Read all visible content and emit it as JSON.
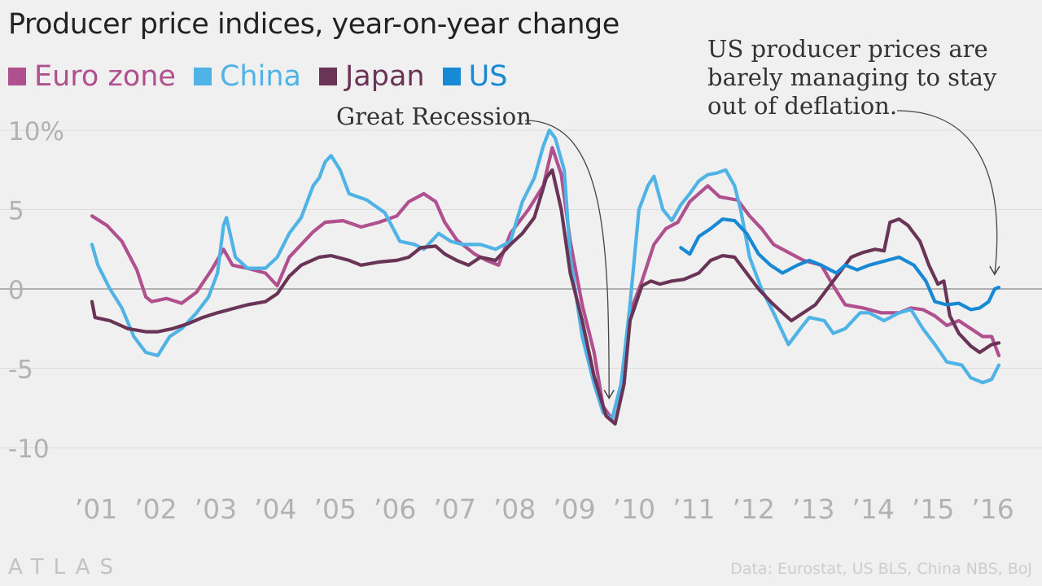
{
  "title": "Producer price indices, year-on-year change",
  "logo": "ATLAS",
  "source": "Data: Eurostat, US BLS, China NBS, BoJ",
  "colors": {
    "euro": "#b0508f",
    "china": "#4fb3e6",
    "japan": "#6a3456",
    "us": "#1889d4",
    "zero_line": "#9a9a9a",
    "grid": "#dcdcdc",
    "tick_text": "#b2b2b2"
  },
  "chart_data": {
    "type": "line",
    "title": "Producer price indices, year-on-year change",
    "xlabel": "",
    "ylabel": "",
    "ylim": [
      -10,
      10
    ],
    "y_ticks": [
      {
        "value": 10,
        "label": "10%"
      },
      {
        "value": 5,
        "label": "5"
      },
      {
        "value": 0,
        "label": "0"
      },
      {
        "value": -5,
        "label": "-5"
      },
      {
        "value": -10,
        "label": "-10"
      }
    ],
    "x_ticks": [
      {
        "value": 2001,
        "label": "’01"
      },
      {
        "value": 2002,
        "label": "’02"
      },
      {
        "value": 2003,
        "label": "’03"
      },
      {
        "value": 2004,
        "label": "’04"
      },
      {
        "value": 2005,
        "label": "’05"
      },
      {
        "value": 2006,
        "label": "’06"
      },
      {
        "value": 2007,
        "label": "’07"
      },
      {
        "value": 2008,
        "label": "’08"
      },
      {
        "value": 2009,
        "label": "’09"
      },
      {
        "value": 2010,
        "label": "’10"
      },
      {
        "value": 2011,
        "label": "’11"
      },
      {
        "value": 2012,
        "label": "’12"
      },
      {
        "value": 2013,
        "label": "’13"
      },
      {
        "value": 2014,
        "label": "’14"
      },
      {
        "value": 2015,
        "label": "’15"
      },
      {
        "value": 2016,
        "label": "’16"
      }
    ],
    "xlim": [
      2001,
      2016.17
    ],
    "grid": true,
    "legend_position": "top-left",
    "series": [
      {
        "name": "Euro zone",
        "color_key": "euro",
        "points": [
          [
            2001.0,
            4.6
          ],
          [
            2001.25,
            4.0
          ],
          [
            2001.5,
            3.0
          ],
          [
            2001.75,
            1.2
          ],
          [
            2001.9,
            -0.5
          ],
          [
            2002.0,
            -0.8
          ],
          [
            2002.25,
            -0.6
          ],
          [
            2002.5,
            -0.9
          ],
          [
            2002.75,
            -0.2
          ],
          [
            2003.0,
            1.2
          ],
          [
            2003.2,
            2.5
          ],
          [
            2003.35,
            1.5
          ],
          [
            2003.6,
            1.3
          ],
          [
            2003.9,
            1.0
          ],
          [
            2004.1,
            0.2
          ],
          [
            2004.3,
            2.0
          ],
          [
            2004.5,
            2.8
          ],
          [
            2004.7,
            3.6
          ],
          [
            2004.9,
            4.2
          ],
          [
            2005.2,
            4.3
          ],
          [
            2005.5,
            3.9
          ],
          [
            2005.8,
            4.2
          ],
          [
            2006.1,
            4.6
          ],
          [
            2006.3,
            5.5
          ],
          [
            2006.55,
            6.0
          ],
          [
            2006.75,
            5.5
          ],
          [
            2006.9,
            4.2
          ],
          [
            2007.1,
            3.1
          ],
          [
            2007.4,
            2.2
          ],
          [
            2007.6,
            1.8
          ],
          [
            2007.8,
            1.5
          ],
          [
            2008.0,
            3.5
          ],
          [
            2008.3,
            5.0
          ],
          [
            2008.55,
            6.5
          ],
          [
            2008.7,
            8.9
          ],
          [
            2008.85,
            7.2
          ],
          [
            2009.0,
            3.0
          ],
          [
            2009.2,
            -1.0
          ],
          [
            2009.4,
            -4.0
          ],
          [
            2009.55,
            -7.4
          ],
          [
            2009.7,
            -8.2
          ],
          [
            2009.85,
            -6.0
          ],
          [
            2010.0,
            -1.5
          ],
          [
            2010.2,
            0.5
          ],
          [
            2010.4,
            2.8
          ],
          [
            2010.6,
            3.8
          ],
          [
            2010.8,
            4.2
          ],
          [
            2011.0,
            5.5
          ],
          [
            2011.3,
            6.5
          ],
          [
            2011.5,
            5.8
          ],
          [
            2011.8,
            5.6
          ],
          [
            2012.0,
            4.6
          ],
          [
            2012.2,
            3.8
          ],
          [
            2012.4,
            2.8
          ],
          [
            2012.7,
            2.2
          ],
          [
            2012.9,
            1.8
          ],
          [
            2013.2,
            1.5
          ],
          [
            2013.4,
            0.2
          ],
          [
            2013.6,
            -1.0
          ],
          [
            2013.9,
            -1.2
          ],
          [
            2014.2,
            -1.5
          ],
          [
            2014.5,
            -1.5
          ],
          [
            2014.7,
            -1.2
          ],
          [
            2014.9,
            -1.3
          ],
          [
            2015.1,
            -1.7
          ],
          [
            2015.3,
            -2.3
          ],
          [
            2015.5,
            -2.0
          ],
          [
            2015.7,
            -2.5
          ],
          [
            2015.9,
            -3.0
          ],
          [
            2016.05,
            -3.0
          ],
          [
            2016.17,
            -4.2
          ]
        ]
      },
      {
        "name": "China",
        "color_key": "china",
        "points": [
          [
            2001.0,
            2.8
          ],
          [
            2001.1,
            1.5
          ],
          [
            2001.3,
            0.0
          ],
          [
            2001.5,
            -1.2
          ],
          [
            2001.7,
            -3.0
          ],
          [
            2001.9,
            -4.0
          ],
          [
            2002.1,
            -4.2
          ],
          [
            2002.3,
            -3.0
          ],
          [
            2002.5,
            -2.5
          ],
          [
            2002.75,
            -1.5
          ],
          [
            2002.95,
            -0.5
          ],
          [
            2003.1,
            1.0
          ],
          [
            2003.2,
            4.0
          ],
          [
            2003.25,
            4.5
          ],
          [
            2003.4,
            2.0
          ],
          [
            2003.6,
            1.3
          ],
          [
            2003.9,
            1.3
          ],
          [
            2004.1,
            2.0
          ],
          [
            2004.3,
            3.5
          ],
          [
            2004.5,
            4.5
          ],
          [
            2004.7,
            6.5
          ],
          [
            2004.8,
            7.0
          ],
          [
            2004.9,
            8.0
          ],
          [
            2005.0,
            8.4
          ],
          [
            2005.15,
            7.5
          ],
          [
            2005.3,
            6.0
          ],
          [
            2005.6,
            5.6
          ],
          [
            2005.9,
            4.8
          ],
          [
            2006.15,
            3.0
          ],
          [
            2006.4,
            2.8
          ],
          [
            2006.55,
            2.5
          ],
          [
            2006.8,
            3.5
          ],
          [
            2007.0,
            3.0
          ],
          [
            2007.2,
            2.8
          ],
          [
            2007.5,
            2.8
          ],
          [
            2007.75,
            2.5
          ],
          [
            2008.0,
            3.0
          ],
          [
            2008.2,
            5.5
          ],
          [
            2008.4,
            7.0
          ],
          [
            2008.55,
            9.0
          ],
          [
            2008.65,
            10.0
          ],
          [
            2008.75,
            9.5
          ],
          [
            2008.9,
            7.5
          ],
          [
            2009.0,
            2.0
          ],
          [
            2009.2,
            -3.0
          ],
          [
            2009.4,
            -6.0
          ],
          [
            2009.55,
            -7.8
          ],
          [
            2009.7,
            -8.2
          ],
          [
            2009.85,
            -6.0
          ],
          [
            2010.0,
            -1.0
          ],
          [
            2010.15,
            5.0
          ],
          [
            2010.3,
            6.5
          ],
          [
            2010.4,
            7.1
          ],
          [
            2010.55,
            5.0
          ],
          [
            2010.7,
            4.3
          ],
          [
            2010.85,
            5.3
          ],
          [
            2011.0,
            6.0
          ],
          [
            2011.15,
            6.8
          ],
          [
            2011.3,
            7.2
          ],
          [
            2011.45,
            7.3
          ],
          [
            2011.6,
            7.5
          ],
          [
            2011.75,
            6.5
          ],
          [
            2011.85,
            5.0
          ],
          [
            2012.0,
            2.0
          ],
          [
            2012.2,
            0.0
          ],
          [
            2012.4,
            -1.5
          ],
          [
            2012.65,
            -3.5
          ],
          [
            2012.85,
            -2.5
          ],
          [
            2013.0,
            -1.8
          ],
          [
            2013.25,
            -2.0
          ],
          [
            2013.4,
            -2.8
          ],
          [
            2013.6,
            -2.5
          ],
          [
            2013.85,
            -1.5
          ],
          [
            2014.0,
            -1.5
          ],
          [
            2014.25,
            -2.0
          ],
          [
            2014.5,
            -1.5
          ],
          [
            2014.7,
            -1.3
          ],
          [
            2014.9,
            -2.5
          ],
          [
            2015.1,
            -3.5
          ],
          [
            2015.3,
            -4.6
          ],
          [
            2015.55,
            -4.8
          ],
          [
            2015.7,
            -5.6
          ],
          [
            2015.9,
            -5.9
          ],
          [
            2016.05,
            -5.7
          ],
          [
            2016.17,
            -4.8
          ]
        ]
      },
      {
        "name": "Japan",
        "color_key": "japan",
        "points": [
          [
            2001.0,
            -0.8
          ],
          [
            2001.05,
            -1.8
          ],
          [
            2001.3,
            -2.0
          ],
          [
            2001.6,
            -2.5
          ],
          [
            2001.9,
            -2.7
          ],
          [
            2002.1,
            -2.7
          ],
          [
            2002.35,
            -2.5
          ],
          [
            2002.6,
            -2.2
          ],
          [
            2002.85,
            -1.8
          ],
          [
            2003.1,
            -1.5
          ],
          [
            2003.4,
            -1.2
          ],
          [
            2003.6,
            -1.0
          ],
          [
            2003.9,
            -0.8
          ],
          [
            2004.1,
            -0.3
          ],
          [
            2004.3,
            0.8
          ],
          [
            2004.5,
            1.5
          ],
          [
            2004.8,
            2.0
          ],
          [
            2005.0,
            2.1
          ],
          [
            2005.3,
            1.8
          ],
          [
            2005.5,
            1.5
          ],
          [
            2005.8,
            1.7
          ],
          [
            2006.1,
            1.8
          ],
          [
            2006.3,
            2.0
          ],
          [
            2006.5,
            2.6
          ],
          [
            2006.75,
            2.7
          ],
          [
            2006.9,
            2.2
          ],
          [
            2007.1,
            1.8
          ],
          [
            2007.3,
            1.5
          ],
          [
            2007.5,
            2.0
          ],
          [
            2007.75,
            1.8
          ],
          [
            2008.0,
            2.8
          ],
          [
            2008.2,
            3.5
          ],
          [
            2008.4,
            4.5
          ],
          [
            2008.6,
            7.0
          ],
          [
            2008.7,
            7.5
          ],
          [
            2008.85,
            5.0
          ],
          [
            2009.0,
            1.0
          ],
          [
            2009.2,
            -2.0
          ],
          [
            2009.4,
            -5.5
          ],
          [
            2009.6,
            -8.0
          ],
          [
            2009.75,
            -8.5
          ],
          [
            2009.9,
            -6.0
          ],
          [
            2010.0,
            -2.0
          ],
          [
            2010.2,
            0.2
          ],
          [
            2010.35,
            0.5
          ],
          [
            2010.5,
            0.3
          ],
          [
            2010.7,
            0.5
          ],
          [
            2010.9,
            0.6
          ],
          [
            2011.15,
            1.0
          ],
          [
            2011.35,
            1.8
          ],
          [
            2011.55,
            2.1
          ],
          [
            2011.75,
            2.0
          ],
          [
            2011.95,
            1.0
          ],
          [
            2012.15,
            0.0
          ],
          [
            2012.35,
            -0.8
          ],
          [
            2012.55,
            -1.5
          ],
          [
            2012.7,
            -2.0
          ],
          [
            2012.9,
            -1.5
          ],
          [
            2013.1,
            -1.0
          ],
          [
            2013.3,
            0.0
          ],
          [
            2013.5,
            1.0
          ],
          [
            2013.7,
            2.0
          ],
          [
            2013.9,
            2.3
          ],
          [
            2014.1,
            2.5
          ],
          [
            2014.25,
            2.4
          ],
          [
            2014.35,
            4.2
          ],
          [
            2014.5,
            4.4
          ],
          [
            2014.65,
            4.0
          ],
          [
            2014.85,
            3.0
          ],
          [
            2015.0,
            1.5
          ],
          [
            2015.15,
            0.3
          ],
          [
            2015.25,
            0.5
          ],
          [
            2015.35,
            -1.7
          ],
          [
            2015.5,
            -2.8
          ],
          [
            2015.7,
            -3.6
          ],
          [
            2015.85,
            -4.0
          ],
          [
            2016.05,
            -3.5
          ],
          [
            2016.17,
            -3.4
          ]
        ]
      },
      {
        "name": "US",
        "color_key": "us",
        "points": [
          [
            2010.85,
            2.6
          ],
          [
            2011.0,
            2.2
          ],
          [
            2011.15,
            3.3
          ],
          [
            2011.35,
            3.8
          ],
          [
            2011.55,
            4.4
          ],
          [
            2011.75,
            4.3
          ],
          [
            2011.95,
            3.5
          ],
          [
            2012.15,
            2.2
          ],
          [
            2012.35,
            1.5
          ],
          [
            2012.55,
            1.0
          ],
          [
            2012.8,
            1.5
          ],
          [
            2013.0,
            1.8
          ],
          [
            2013.2,
            1.5
          ],
          [
            2013.45,
            1.0
          ],
          [
            2013.6,
            1.5
          ],
          [
            2013.8,
            1.2
          ],
          [
            2014.0,
            1.5
          ],
          [
            2014.3,
            1.8
          ],
          [
            2014.5,
            2.0
          ],
          [
            2014.75,
            1.5
          ],
          [
            2014.95,
            0.5
          ],
          [
            2015.1,
            -0.8
          ],
          [
            2015.3,
            -1.0
          ],
          [
            2015.5,
            -0.9
          ],
          [
            2015.7,
            -1.3
          ],
          [
            2015.85,
            -1.2
          ],
          [
            2016.0,
            -0.8
          ],
          [
            2016.1,
            0.0
          ],
          [
            2016.17,
            0.1
          ]
        ]
      }
    ],
    "annotations": [
      {
        "lines": [
          "Great Recession"
        ],
        "target_x": 2009.65,
        "target_y": -7.5
      },
      {
        "lines": [
          "US producer prices are",
          "barely managing to stay",
          "out of deflation."
        ],
        "target_x": 2016.1,
        "target_y": 0.3
      }
    ]
  }
}
